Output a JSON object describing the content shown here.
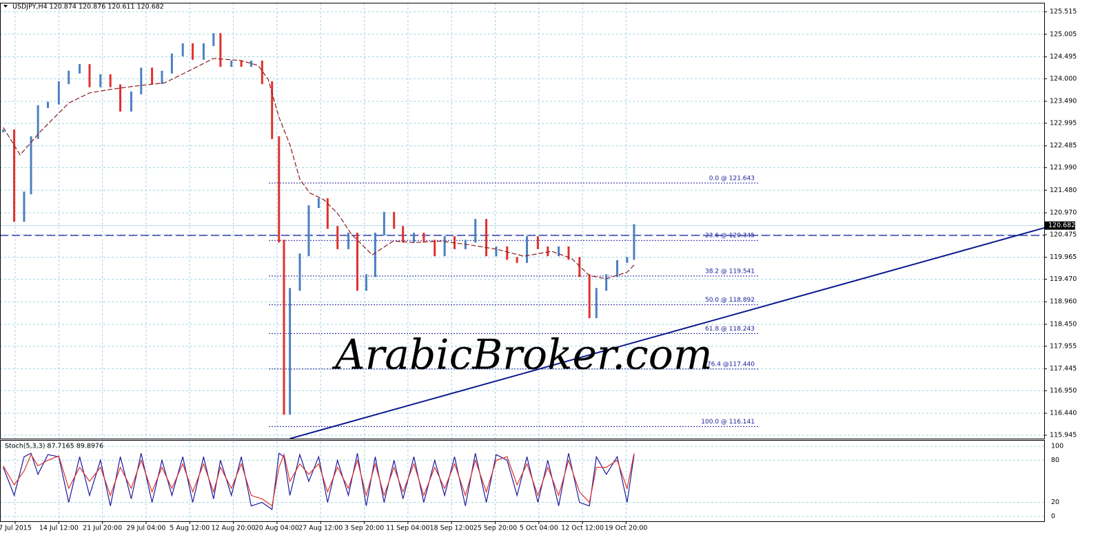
{
  "chart_data": {
    "type": "ohlc-line",
    "title": "USDJPY,H4  120.874 120.876 120.611 120.682",
    "watermark": "ArabicBroker.com",
    "xlim": [
      -15.3,
      1037.5
    ],
    "xticks": [
      {
        "value": 0,
        "label": "7 Jul 2015"
      },
      {
        "value": 44,
        "label": "14 Jul 12:00"
      },
      {
        "value": 88,
        "label": "21 Jul 20:00"
      },
      {
        "value": 132,
        "label": "29 Jul 04:00"
      },
      {
        "value": 176,
        "label": "5 Aug 12:00"
      },
      {
        "value": 220,
        "label": "12 Aug 20:00"
      },
      {
        "value": 264,
        "label": "20 Aug 04:00"
      },
      {
        "value": 308,
        "label": "27 Aug 12:00"
      },
      {
        "value": 352,
        "label": "3 Sep 20:00"
      },
      {
        "value": 396,
        "label": "11 Sep 04:00"
      },
      {
        "value": 440,
        "label": "18 Sep 12:00"
      },
      {
        "value": 484,
        "label": "25 Sep 20:00"
      },
      {
        "value": 528,
        "label": "5 Oct 04:00"
      },
      {
        "value": 572,
        "label": "12 Oct 12:00"
      },
      {
        "value": 616,
        "label": "19 Oct 20:00"
      }
    ],
    "ylim": [
      115.867,
      125.702
    ],
    "yticks": [
      125.515,
      125.005,
      124.495,
      {
        "value": 124,
        "label": "124.000"
      },
      {
        "value": 123.49,
        "label": "123.490"
      },
      122.995,
      122.485,
      {
        "value": 121.99,
        "label": "121.990"
      },
      {
        "value": 121.48,
        "label": "121.480"
      },
      {
        "value": 120.97,
        "label": "120.970"
      },
      120.475,
      119.965,
      {
        "value": 119.47,
        "label": "119.470"
      },
      {
        "value": 118.96,
        "label": "118.960"
      },
      {
        "value": 118.45,
        "label": "118.450"
      },
      117.955,
      117.445,
      {
        "value": 116.95,
        "label": "116.950"
      },
      {
        "value": 116.44,
        "label": "116.440"
      },
      115.945
    ],
    "grid": true,
    "series": [
      {
        "name": "USDJPY",
        "up_color": "#4a7fc1",
        "down_color": "#e0302c",
        "x": [
          -12,
          -1,
          9,
          16,
          23,
          33,
          44,
          54,
          65,
          75,
          86,
          96,
          106,
          117,
          127,
          138,
          148,
          158,
          169,
          179,
          190,
          200,
          207,
          218,
          228,
          238,
          249,
          259,
          266,
          271,
          277,
          287,
          296,
          306,
          315,
          325,
          336,
          345,
          354,
          363,
          372,
          382,
          391,
          402,
          412,
          423,
          433,
          443,
          454,
          464,
          475,
          485,
          496,
          506,
          516,
          527,
          537,
          548,
          558,
          569,
          579,
          586,
          596,
          607,
          617,
          624
        ],
        "values": [
          122.82,
          120.8,
          121.42,
          122.67,
          123.37,
          123.45,
          123.91,
          124.15,
          124.3,
          123.84,
          124.07,
          123.84,
          123.29,
          123.68,
          124.22,
          123.91,
          124.15,
          124.54,
          124.77,
          124.46,
          124.77,
          125.0,
          124.3,
          124.38,
          124.3,
          124.38,
          123.91,
          122.67,
          120.33,
          116.44,
          119.24,
          120.02,
          121.11,
          121.27,
          120.64,
          120.18,
          120.49,
          119.24,
          119.55,
          120.49,
          120.96,
          120.64,
          120.33,
          120.49,
          120.33,
          120.02,
          120.41,
          120.18,
          120.33,
          120.8,
          120.02,
          120.18,
          119.94,
          119.87,
          120.41,
          120.18,
          120.02,
          120.18,
          119.94,
          119.55,
          118.62,
          119.24,
          119.55,
          119.87,
          119.94,
          120.682
        ]
      },
      {
        "name": "MA",
        "color": "#8b1a1a",
        "x": [
          -12,
          5,
          26,
          54,
          75,
          96,
          123,
          151,
          179,
          200,
          228,
          245,
          255,
          266,
          277,
          287,
          297,
          311,
          325,
          339,
          360,
          381,
          402,
          429,
          457,
          485,
          513,
          541,
          561,
          579,
          596,
          617,
          624
        ],
        "values": [
          122.9,
          122.28,
          122.82,
          123.45,
          123.68,
          123.76,
          123.84,
          123.91,
          124.22,
          124.46,
          124.41,
          124.3,
          123.99,
          123.13,
          122.51,
          121.73,
          121.42,
          121.27,
          120.96,
          120.49,
          120.02,
          120.33,
          120.3,
          120.33,
          120.25,
          120.15,
          119.99,
          120.1,
          119.94,
          119.55,
          119.48,
          119.63,
          119.79
        ]
      }
    ],
    "fibonacci": [
      {
        "label": "0.0 @ 121.643",
        "value": 121.643
      },
      {
        "label": "23.6 @ 120.345",
        "value": 120.345
      },
      {
        "label": "38.2 @ 119.541",
        "value": 119.541
      },
      {
        "label": "50.0 @ 118.892",
        "value": 118.892
      },
      {
        "label": "61.8 @ 118.243",
        "value": 118.243
      },
      {
        "label": "76.4 @117.440",
        "value": 117.44
      },
      {
        "label": "100.0 @ 116.141",
        "value": 116.141
      }
    ],
    "support": 120.46,
    "current_price": 120.682,
    "trendline": {
      "x": [
        277,
        1037.5
      ],
      "values": [
        115.867,
        120.63
      ],
      "color": "#0a1a8c"
    },
    "stochastic": {
      "title": "Stoch(5,3,3) 87.7165 89.8976",
      "ylim": [
        -6.9,
        107.8
      ],
      "yticks": [
        0,
        20,
        80,
        100
      ],
      "series": [
        {
          "name": "Main",
          "color": "#1a1a9c",
          "values": [
            70,
            30,
            85,
            90,
            60,
            88,
            85,
            20,
            85,
            30,
            80,
            15,
            85,
            25,
            90,
            20,
            80,
            30,
            85,
            20,
            85,
            25,
            80,
            30,
            85,
            15,
            20,
            10,
            90,
            85,
            30,
            88,
            50,
            85,
            20,
            80,
            30,
            90,
            15,
            85,
            20,
            80,
            25,
            85,
            20,
            80,
            30,
            85,
            15,
            90,
            20,
            88,
            80,
            30,
            85,
            20,
            80,
            15,
            90,
            20,
            15,
            85,
            60,
            85,
            20,
            87.7165
          ]
        },
        {
          "name": "Signal",
          "color": "#e0302c",
          "values": [
            72,
            45,
            65,
            88,
            72,
            80,
            86,
            40,
            70,
            50,
            70,
            30,
            70,
            40,
            80,
            35,
            70,
            40,
            75,
            35,
            75,
            35,
            70,
            40,
            75,
            30,
            25,
            15,
            70,
            88,
            50,
            75,
            60,
            75,
            35,
            70,
            40,
            80,
            30,
            75,
            30,
            70,
            35,
            75,
            30,
            70,
            40,
            75,
            30,
            80,
            35,
            80,
            85,
            45,
            75,
            30,
            70,
            30,
            80,
            35,
            20,
            70,
            70,
            80,
            40,
            89.8976
          ]
        }
      ]
    }
  }
}
